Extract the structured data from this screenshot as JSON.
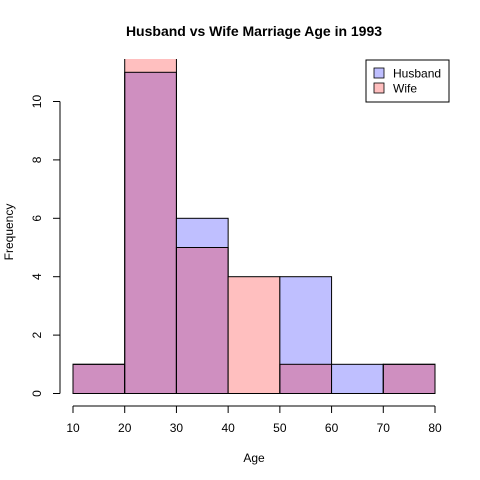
{
  "chart_data": {
    "type": "bar",
    "title": "Husband vs Wife Marriage Age in 1993",
    "xlabel": "Age",
    "ylabel": "Frequency",
    "bins": [
      [
        10,
        20
      ],
      [
        20,
        30
      ],
      [
        30,
        40
      ],
      [
        40,
        50
      ],
      [
        50,
        60
      ],
      [
        60,
        70
      ],
      [
        70,
        80
      ]
    ],
    "xticks": [
      10,
      20,
      30,
      40,
      50,
      60,
      70,
      80
    ],
    "yticks": [
      0,
      2,
      4,
      6,
      8,
      10
    ],
    "xlim": [
      10,
      80
    ],
    "ylim": [
      0,
      11.6
    ],
    "series": [
      {
        "name": "Husband",
        "values": [
          1,
          11,
          6,
          0,
          4,
          1,
          1
        ],
        "color": "#bfbfff"
      },
      {
        "name": "Wife",
        "values": [
          1,
          12,
          5,
          4,
          1,
          0,
          1
        ],
        "color": "#ffbfbf"
      }
    ],
    "overlap_color": "#cf8fc0",
    "legend": "top-right",
    "grid": false
  }
}
